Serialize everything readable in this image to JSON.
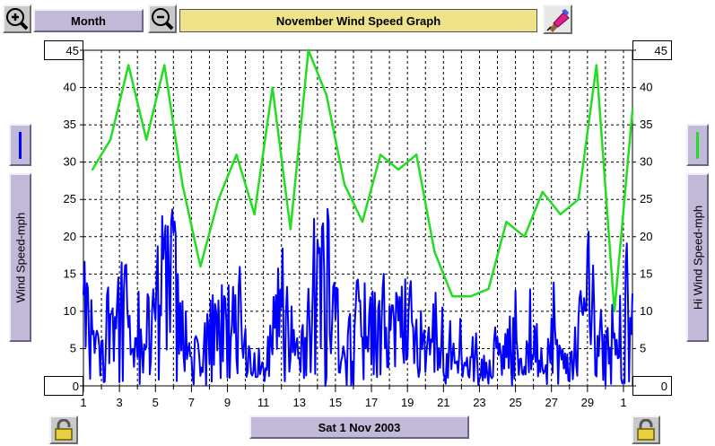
{
  "header": {
    "period_label": "Month",
    "title": "November Wind Speed Graph",
    "zoom_in_icon": "magnifier-plus-icon",
    "zoom_out_icon": "magnifier-minus-icon",
    "tool_icon": "eraser-pencil-icon"
  },
  "footer": {
    "date_label": "Sat 1 Nov 2003",
    "lock_icon": "padlock-icon"
  },
  "colors": {
    "wind": "#0000ff",
    "hi_wind": "#22dd22",
    "grid": "#000000"
  },
  "chart_data": {
    "type": "line",
    "title": "November Wind Speed Graph",
    "ylabel_left": "Wind Speed-mph",
    "ylabel_right": "Hi Wind Speed-mph",
    "ylim": [
      0,
      45
    ],
    "y_ticks": [
      0,
      5,
      10,
      15,
      20,
      25,
      30,
      35,
      40,
      45
    ],
    "xlim": [
      1,
      31.5
    ],
    "x_tick_labels": [
      "1",
      "3",
      "5",
      "7",
      "9",
      "11",
      "13",
      "15",
      "17",
      "19",
      "21",
      "23",
      "25",
      "27",
      "29",
      "1"
    ],
    "x_tick_days": [
      1,
      3,
      5,
      7,
      9,
      11,
      13,
      15,
      17,
      19,
      21,
      23,
      25,
      27,
      29,
      31
    ],
    "y_max_box": "45",
    "y_min_box": "0",
    "grid": true,
    "series": [
      {
        "name": "Hi Wind Speed-mph",
        "color": "#22dd22",
        "x": [
          1.5,
          2.5,
          3.5,
          4.5,
          5.5,
          6.5,
          7.5,
          8.5,
          9.5,
          10.5,
          11.5,
          12.5,
          13.5,
          14.5,
          15.5,
          16.5,
          17.5,
          18.5,
          19.5,
          20.5,
          21.5,
          22.5,
          23.5,
          24.5,
          25.5,
          26.5,
          27.5,
          28.5,
          29.5,
          30.5,
          31.5
        ],
        "values": [
          29,
          33,
          43,
          33,
          43,
          27,
          16,
          25,
          31,
          23,
          40,
          21,
          45,
          39,
          27,
          22,
          31,
          29,
          31,
          18,
          12,
          12,
          13,
          22,
          20,
          26,
          23,
          25,
          43,
          10,
          37
        ]
      },
      {
        "name": "Wind Speed-mph",
        "color": "#0000ff",
        "daily_levels": [
          10,
          7,
          12,
          4,
          12,
          16,
          3,
          7,
          9,
          6,
          2,
          12,
          3,
          16,
          12,
          7,
          8,
          6,
          9,
          6,
          4,
          3,
          2,
          4,
          5,
          3,
          6,
          2,
          13,
          4,
          13
        ],
        "daily_peaks": [
          17,
          23,
          20,
          14,
          22,
          25,
          10,
          14,
          17,
          8,
          8,
          21,
          10,
          25,
          20,
          15,
          17,
          14,
          17,
          13,
          10,
          8,
          8,
          10,
          13,
          9,
          15,
          6,
          26,
          10,
          20
        ]
      }
    ]
  }
}
